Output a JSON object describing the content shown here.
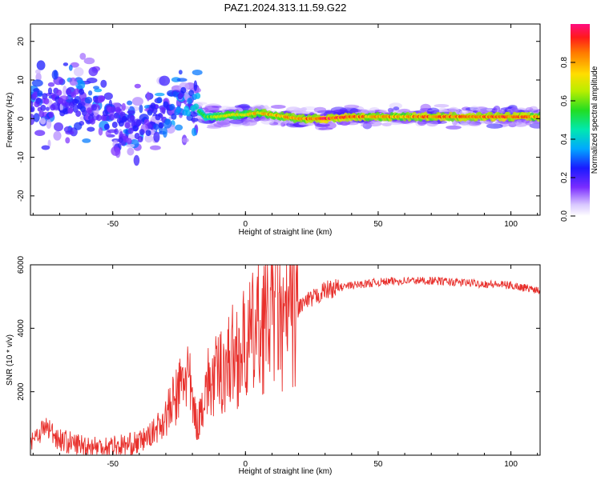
{
  "title": "PAZ1.2024.313.11.59.G22",
  "chart_data": [
    {
      "type": "heatmap",
      "xlabel": "Height of straight line (km)",
      "ylabel": "Frequency (Hz)",
      "xlim": [
        -81,
        111
      ],
      "ylim": [
        -25,
        24.5
      ],
      "x_ticks": [
        -50,
        0,
        50,
        100
      ],
      "y_ticks": [
        20,
        10,
        0,
        -10,
        -20
      ],
      "colorbar": {
        "label": "Normalized spectral amplitude",
        "ticks": [
          "0.0",
          "0.2",
          "0.4",
          "0.6",
          "0.8"
        ],
        "range": [
          0,
          1
        ]
      },
      "ridge": [
        {
          "x": -80,
          "f": 5.5,
          "a": 0.3
        },
        {
          "x": -75,
          "f": 4.0,
          "a": 0.32
        },
        {
          "x": -70,
          "f": 4.5,
          "a": 0.3
        },
        {
          "x": -65,
          "f": 5.0,
          "a": 0.3
        },
        {
          "x": -60,
          "f": 4.0,
          "a": 0.3
        },
        {
          "x": -55,
          "f": 2.0,
          "a": 0.28
        },
        {
          "x": -50,
          "f": -1.0,
          "a": 0.28
        },
        {
          "x": -45,
          "f": -2.0,
          "a": 0.3
        },
        {
          "x": -40,
          "f": -1.5,
          "a": 0.3
        },
        {
          "x": -35,
          "f": -0.5,
          "a": 0.32
        },
        {
          "x": -30,
          "f": 3.0,
          "a": 0.35
        },
        {
          "x": -25,
          "f": 4.0,
          "a": 0.4
        },
        {
          "x": -20,
          "f": 3.5,
          "a": 0.5
        },
        {
          "x": -15,
          "f": 0.5,
          "a": 0.6
        },
        {
          "x": -10,
          "f": 0.5,
          "a": 0.7
        },
        {
          "x": -5,
          "f": 1.0,
          "a": 0.75
        },
        {
          "x": 0,
          "f": 1.0,
          "a": 0.75
        },
        {
          "x": 5,
          "f": 1.5,
          "a": 0.8
        },
        {
          "x": 10,
          "f": 1.0,
          "a": 0.82
        },
        {
          "x": 15,
          "f": 0.5,
          "a": 0.85
        },
        {
          "x": 20,
          "f": 0.0,
          "a": 0.85
        },
        {
          "x": 30,
          "f": 0.0,
          "a": 0.98
        },
        {
          "x": 40,
          "f": 0.5,
          "a": 0.9
        },
        {
          "x": 50,
          "f": 0.5,
          "a": 0.85
        },
        {
          "x": 60,
          "f": 0.5,
          "a": 0.85
        },
        {
          "x": 70,
          "f": 0.5,
          "a": 0.9
        },
        {
          "x": 80,
          "f": 0.5,
          "a": 0.88
        },
        {
          "x": 90,
          "f": 0.5,
          "a": 0.92
        },
        {
          "x": 100,
          "f": 0.5,
          "a": 0.92
        },
        {
          "x": 110,
          "f": 0.5,
          "a": 0.85
        }
      ]
    },
    {
      "type": "line",
      "xlabel": "Height of straight line (km)",
      "ylabel": "SNR (10 * v/v)",
      "xlim": [
        -81,
        111
      ],
      "ylim": [
        0,
        6000
      ],
      "x_ticks": [
        -50,
        0,
        50,
        100
      ],
      "y_ticks": [
        2000,
        4000,
        6000
      ],
      "color": "#e8302c",
      "series": [
        {
          "x": [
            -81,
            -75,
            -70,
            -65,
            -60,
            -55,
            -50,
            -45,
            -40,
            -35,
            -30,
            -25,
            -22,
            -20,
            -18,
            -15,
            -12,
            -10,
            -5,
            0,
            5,
            10,
            12,
            14,
            16,
            20,
            25,
            30,
            40,
            50,
            60,
            70,
            80,
            90,
            100,
            111
          ],
          "values": [
            500,
            900,
            500,
            350,
            300,
            250,
            300,
            300,
            400,
            700,
            1200,
            2000,
            2700,
            1600,
            900,
            2200,
            2300,
            2600,
            3100,
            3400,
            4000,
            4800,
            5200,
            3600,
            4600,
            4700,
            4900,
            5200,
            5350,
            5450,
            5500,
            5500,
            5450,
            5400,
            5350,
            5200
          ]
        }
      ]
    }
  ]
}
